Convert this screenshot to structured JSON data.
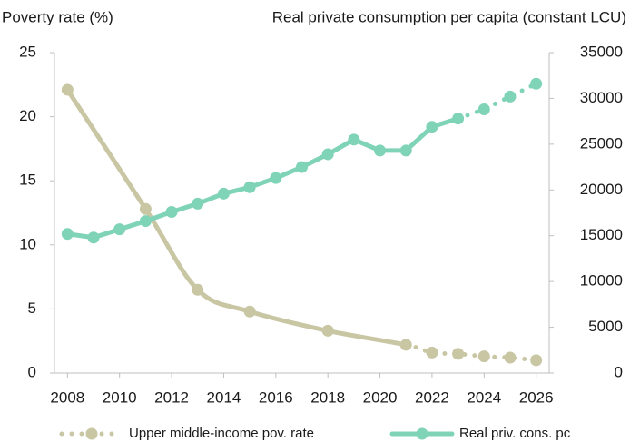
{
  "chart_data": {
    "type": "line",
    "y_label": "Poverty rate (%)",
    "y2_label": "Real private consumption per capita (constant LCU)",
    "xlim": [
      2007.5,
      2026.5
    ],
    "xticks": [
      2008,
      2010,
      2012,
      2014,
      2016,
      2018,
      2020,
      2022,
      2024,
      2026
    ],
    "ylim": [
      0,
      25
    ],
    "yticks": [
      0,
      5,
      10,
      15,
      20,
      25
    ],
    "y2lim": [
      0,
      35000
    ],
    "y2ticks": [
      0,
      5000,
      10000,
      15000,
      20000,
      25000,
      30000,
      35000
    ],
    "legend": "bottom",
    "series": [
      {
        "name": "Upper middle-income pov. rate",
        "color": "#c9c6a4",
        "smooth": true,
        "projected_from": 2021,
        "x": [
          2008,
          2011,
          2013,
          2015,
          2018,
          2021,
          2022,
          2023,
          2024,
          2025,
          2026
        ],
        "values": [
          22.1,
          12.8,
          6.5,
          4.8,
          3.3,
          2.2,
          1.6,
          1.5,
          1.3,
          1.2,
          1.0
        ]
      },
      {
        "name": "Real priv. cons. pc",
        "color": "#7fd3b7",
        "axis": "y2",
        "smooth": false,
        "projected_from": 2023,
        "x": [
          2008,
          2009,
          2010,
          2011,
          2012,
          2013,
          2014,
          2015,
          2016,
          2017,
          2018,
          2019,
          2020,
          2021,
          2022,
          2023,
          2024,
          2025,
          2026
        ],
        "values": [
          15200,
          14800,
          15700,
          16600,
          17600,
          18500,
          19600,
          20300,
          21300,
          22500,
          23900,
          25500,
          24300,
          24300,
          26900,
          27800,
          28800,
          30200,
          31600
        ]
      }
    ]
  }
}
